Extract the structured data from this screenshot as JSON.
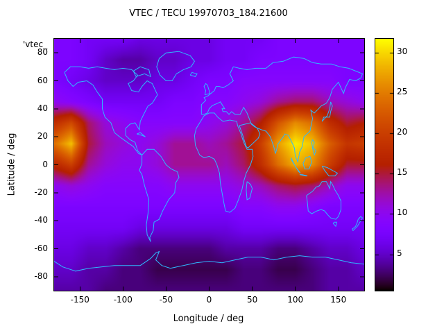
{
  "colors": {
    "background": "#ffffff",
    "coastline": "#2fb8ff",
    "axis": "#000000",
    "text": "#000000"
  },
  "chart_data": {
    "type": "heatmap",
    "title": "VTEC / TECU 19970703_184.21600",
    "key_label": "'vtec_",
    "xlabel": "Longitude / deg",
    "ylabel": "Latitude / deg",
    "units": "TECU",
    "xlim": [
      -180,
      180
    ],
    "ylim": [
      -90,
      90
    ],
    "x_ticks": [
      -150,
      -100,
      -50,
      0,
      50,
      100,
      150
    ],
    "y_ticks": [
      -80,
      -60,
      -40,
      -20,
      0,
      20,
      40,
      60,
      80
    ],
    "grid_on": false,
    "legend_position": "top-left-partial",
    "colorbar": {
      "ticks": [
        5,
        10,
        15,
        20,
        25,
        30
      ],
      "min": 0.5,
      "max": 31.7,
      "palette": "gnuplot-rgbformulae-7-5-15-black-purple-red-orange-yellow"
    },
    "grid": {
      "lons": [
        -180,
        -160,
        -140,
        -120,
        -100,
        -80,
        -60,
        -40,
        -20,
        0,
        20,
        40,
        60,
        80,
        100,
        120,
        140,
        160,
        180
      ],
      "lats": [
        90,
        75,
        60,
        45,
        30,
        15,
        0,
        -15,
        -30,
        -45,
        -60,
        -75,
        -90
      ],
      "values": [
        [
          8,
          8,
          7,
          7,
          7,
          6,
          6,
          6,
          6,
          6,
          7,
          7,
          7,
          8,
          8,
          8,
          8,
          8,
          8
        ],
        [
          8,
          8,
          7,
          5,
          4,
          4,
          5,
          5,
          6,
          6,
          7,
          7,
          8,
          8,
          8,
          8,
          8,
          8,
          8
        ],
        [
          8,
          7,
          6,
          5,
          5,
          5,
          6,
          6,
          7,
          8,
          8,
          9,
          9,
          9,
          9,
          9,
          9,
          8,
          8
        ],
        [
          10,
          9,
          8,
          7,
          7,
          7,
          7,
          8,
          8,
          9,
          9,
          10,
          11,
          13,
          14,
          14,
          12,
          11,
          10
        ],
        [
          18,
          21,
          14,
          11,
          10,
          9,
          9,
          9,
          9,
          10,
          11,
          13,
          16,
          22,
          26,
          24,
          18,
          15,
          16
        ],
        [
          24,
          29,
          15,
          12,
          11,
          10,
          11,
          13,
          13,
          12,
          13,
          15,
          20,
          27,
          31,
          29,
          23,
          19,
          20
        ],
        [
          17,
          20,
          13,
          11,
          10,
          10,
          11,
          13,
          13,
          13,
          12,
          14,
          18,
          24,
          28,
          26,
          20,
          15,
          15
        ],
        [
          10,
          11,
          10,
          9,
          9,
          9,
          9,
          10,
          10,
          10,
          10,
          11,
          12,
          14,
          15,
          14,
          12,
          10,
          10
        ],
        [
          8,
          8,
          8,
          8,
          8,
          8,
          8,
          8,
          8,
          8,
          8,
          9,
          9,
          10,
          10,
          9,
          8,
          8,
          8
        ],
        [
          7,
          7,
          7,
          7,
          7,
          6,
          6,
          6,
          6,
          6,
          6,
          7,
          7,
          7,
          7,
          7,
          7,
          7,
          7
        ],
        [
          6,
          6,
          5,
          5,
          4,
          3,
          3,
          3,
          3,
          3,
          4,
          4,
          4,
          3,
          3,
          4,
          5,
          5,
          6
        ],
        [
          5,
          5,
          4,
          4,
          3,
          3,
          2,
          2,
          2,
          2,
          2,
          3,
          3,
          2,
          2,
          3,
          4,
          4,
          5
        ],
        [
          4,
          4,
          4,
          3,
          3,
          3,
          3,
          3,
          3,
          3,
          3,
          3,
          3,
          3,
          3,
          3,
          4,
          4,
          4
        ]
      ]
    }
  }
}
